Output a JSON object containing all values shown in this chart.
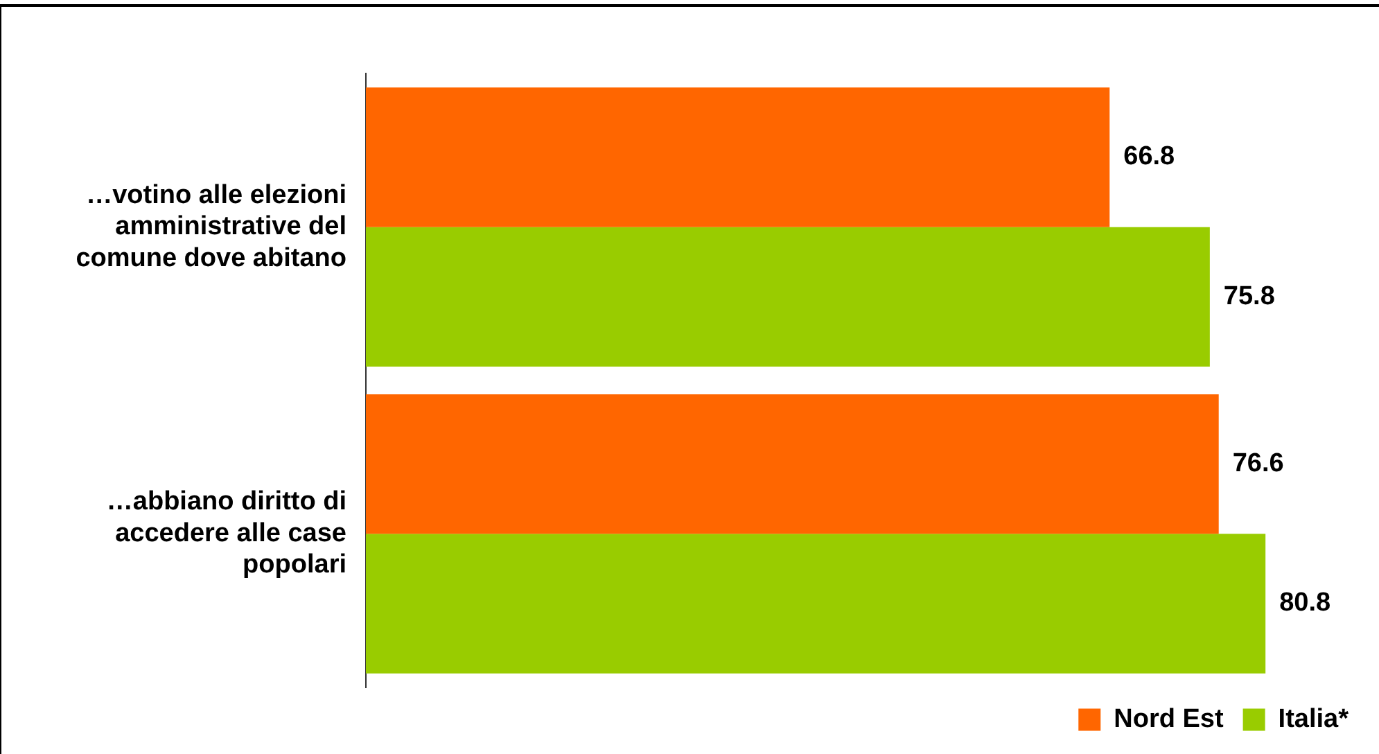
{
  "chart_data": {
    "type": "bar",
    "orientation": "horizontal",
    "categories": [
      "…votino alle elezioni amministrative del comune dove abitano",
      "…abbiano diritto di accedere alle case popolari"
    ],
    "series": [
      {
        "name": "Nord Est",
        "color": "#ff6600",
        "values": [
          66.8,
          76.6
        ]
      },
      {
        "name": "Italia*",
        "color": "#99cc00",
        "values": [
          75.8,
          80.8
        ]
      }
    ],
    "data_labels": true,
    "legend": "bottom right"
  }
}
